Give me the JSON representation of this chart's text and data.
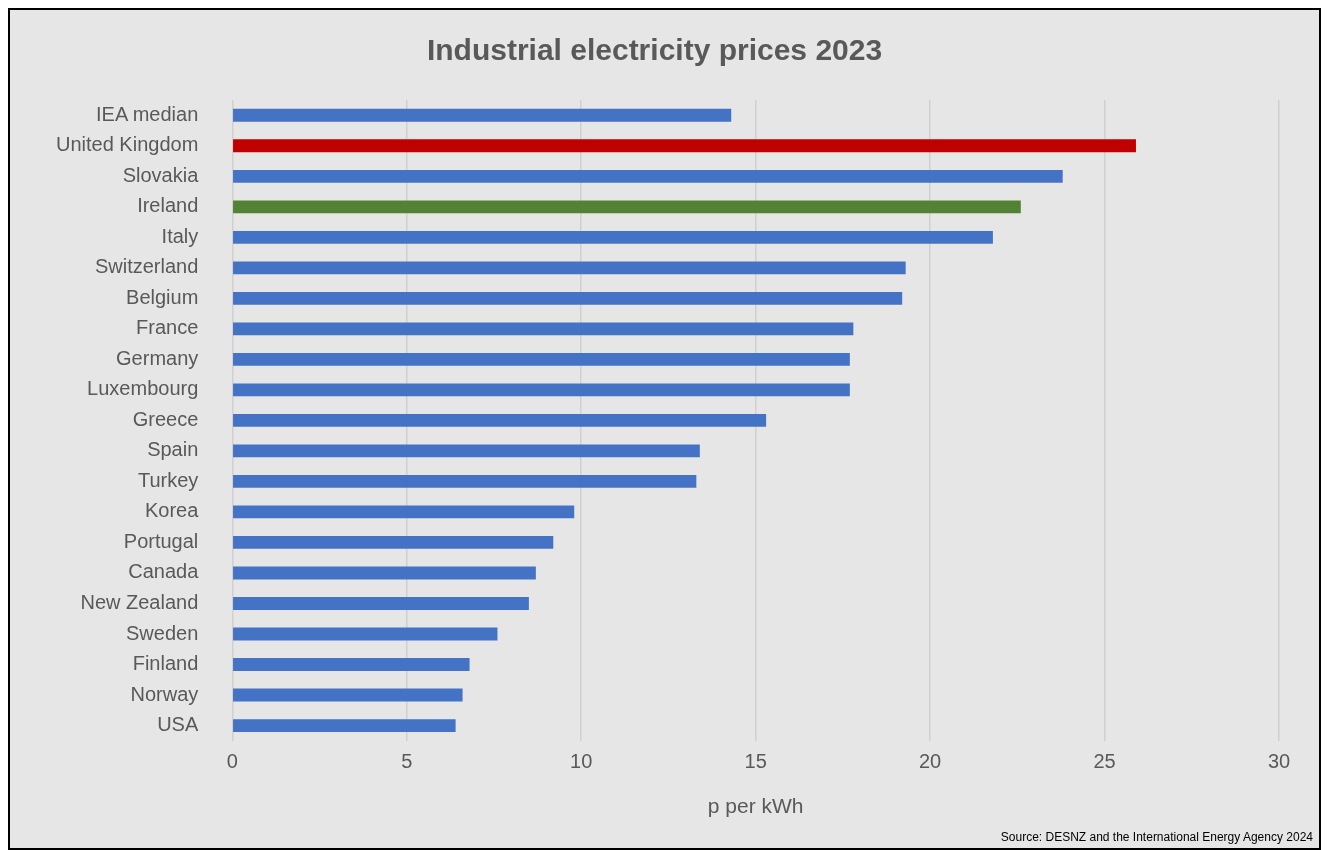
{
  "chart_data": {
    "type": "bar",
    "orientation": "horizontal",
    "title": "Industrial electricity prices 2023",
    "xlabel": "p per kWh",
    "categories": [
      "IEA median",
      "United Kingdom",
      "Slovakia",
      "Ireland",
      "Italy",
      "Switzerland",
      "Belgium",
      "France",
      "Germany",
      "Luxembourg",
      "Greece",
      "Spain",
      "Turkey",
      "Korea",
      "Portugal",
      "Canada",
      "New Zealand",
      "Sweden",
      "Finland",
      "Norway",
      "USA"
    ],
    "values": [
      14.3,
      25.9,
      23.8,
      22.6,
      21.8,
      19.3,
      19.2,
      17.8,
      17.7,
      17.7,
      15.3,
      13.4,
      13.3,
      9.8,
      9.2,
      8.7,
      8.5,
      7.6,
      6.8,
      6.6,
      6.4
    ],
    "colors": [
      "#4472c4",
      "#c00000",
      "#4472c4",
      "#548235",
      "#4472c4",
      "#4472c4",
      "#4472c4",
      "#4472c4",
      "#4472c4",
      "#4472c4",
      "#4472c4",
      "#4472c4",
      "#4472c4",
      "#4472c4",
      "#4472c4",
      "#4472c4",
      "#4472c4",
      "#4472c4",
      "#4472c4",
      "#4472c4",
      "#4472c4"
    ],
    "xlim": [
      0,
      30
    ],
    "xticks": [
      0,
      5,
      10,
      15,
      20,
      25,
      30
    ],
    "grid": "x",
    "legend": false,
    "annotations": [
      "Source: DESNZ and the International Energy Agency 2024"
    ]
  }
}
